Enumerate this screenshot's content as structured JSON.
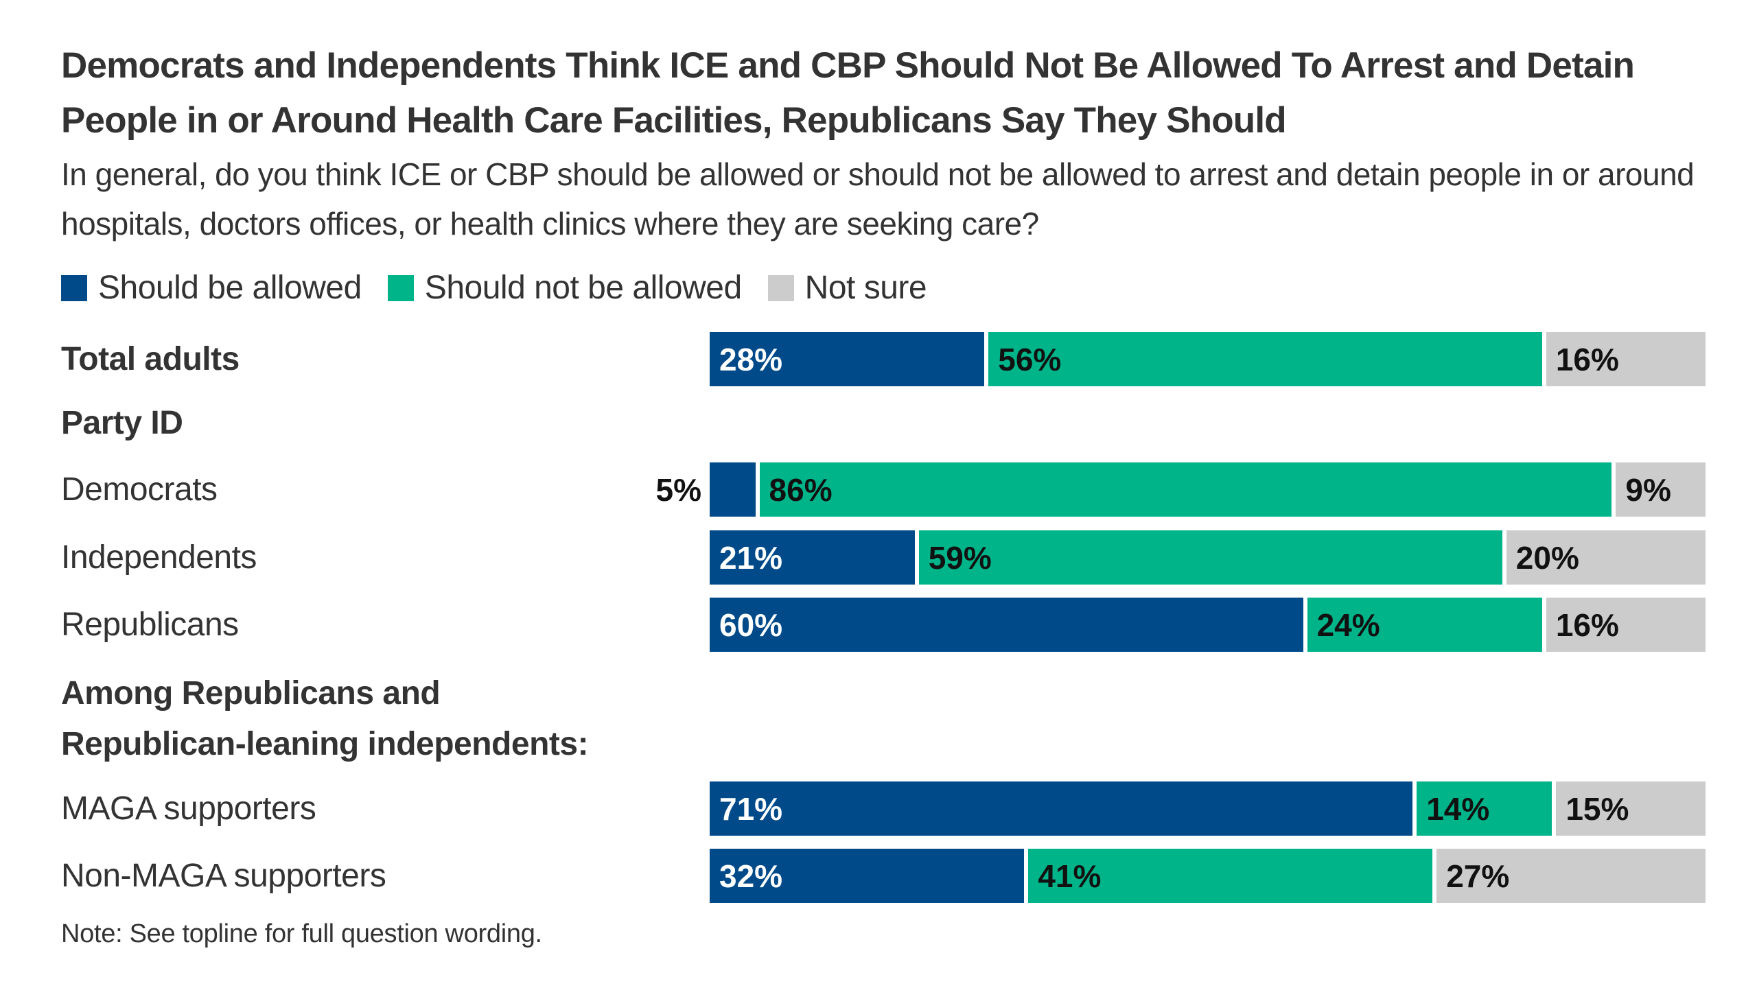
{
  "chart_data": {
    "type": "bar",
    "orientation": "horizontal",
    "stacked": true,
    "title": "Democrats and Independents Think ICE and CBP Should Not Be Allowed To Arrest and Detain People in or Around Health Care Facilities, Republicans Say They Should",
    "subtitle": "In general, do you think ICE or CBP should be allowed or should not be allowed to arrest and detain people in or around hospitals, doctors offices, or health clinics where they are seeking care?",
    "legend": [
      "Should be allowed",
      "Should not be allowed",
      "Not sure"
    ],
    "legend_placement": "top-left",
    "colors": {
      "Should be allowed": "#004a89",
      "Should not be allowed": "#00b48a",
      "Not sure": "#cccccc"
    },
    "rows": [
      {
        "label": "Total adults",
        "bold": true,
        "values": [
          28,
          56,
          16
        ],
        "labels": [
          "28%",
          "56%",
          "16%"
        ]
      },
      {
        "label": "Party ID",
        "bold": true,
        "header": true
      },
      {
        "label": "Democrats",
        "values": [
          5,
          86,
          9
        ],
        "labels": [
          "5%",
          "86%",
          "9%"
        ]
      },
      {
        "label": "Independents",
        "values": [
          21,
          59,
          20
        ],
        "labels": [
          "21%",
          "59%",
          "20%"
        ]
      },
      {
        "label": "Republicans",
        "values": [
          60,
          24,
          16
        ],
        "labels": [
          "60%",
          "24%",
          "16%"
        ]
      },
      {
        "label": "Among Republicans and\nRepublican-leaning independents:",
        "bold": true,
        "header": true
      },
      {
        "label": "MAGA supporters",
        "values": [
          71,
          14,
          15
        ],
        "labels": [
          "71%",
          "14%",
          "15%"
        ]
      },
      {
        "label": "Non-MAGA supporters",
        "values": [
          32,
          41,
          27
        ],
        "labels": [
          "32%",
          "41%",
          "27%"
        ]
      }
    ],
    "xlim": [
      0,
      100
    ],
    "grid": false,
    "note": "Note: See topline for full question wording."
  }
}
